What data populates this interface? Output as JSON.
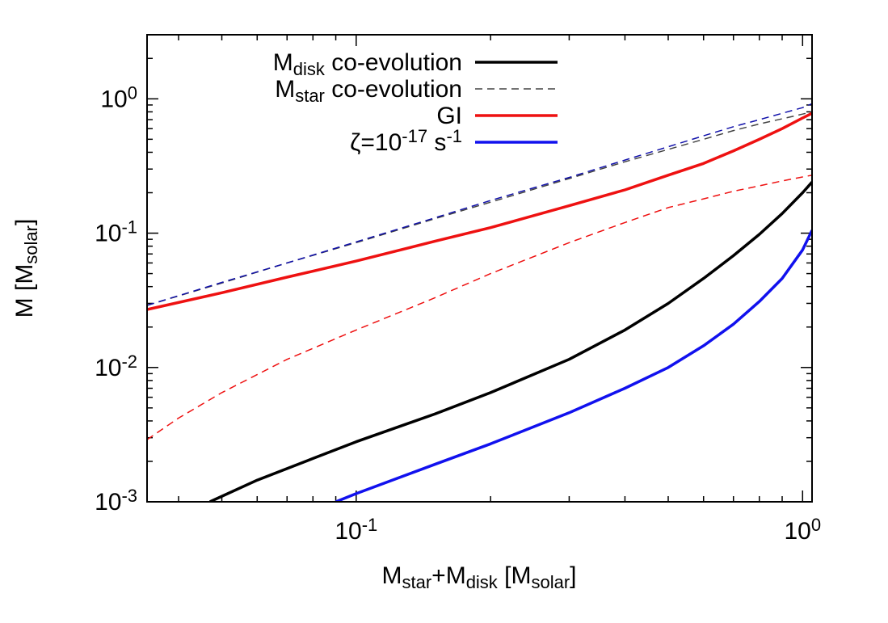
{
  "chart_data": {
    "type": "line",
    "x_scale": "log",
    "y_scale": "log",
    "xlim": [
      0.034,
      1.05
    ],
    "ylim": [
      0.001,
      3
    ],
    "xlabel": {
      "parts": [
        [
          "M",
          ""
        ],
        [
          "star",
          "sub"
        ],
        [
          "+M",
          ""
        ],
        [
          "disk",
          "sub"
        ],
        [
          " [M",
          ""
        ],
        [
          "solar",
          "sub"
        ],
        [
          "]",
          ""
        ]
      ]
    },
    "ylabel": {
      "parts": [
        [
          "M [M",
          ""
        ],
        [
          "solar",
          "sub"
        ],
        [
          "]",
          ""
        ]
      ]
    },
    "x_ticks": [
      {
        "value": 0.1,
        "base": "10",
        "exp": "-1"
      },
      {
        "value": 1,
        "base": "10",
        "exp": "0"
      }
    ],
    "y_ticks": [
      {
        "value": 0.001,
        "base": "10",
        "exp": "-3"
      },
      {
        "value": 0.01,
        "base": "10",
        "exp": "-2"
      },
      {
        "value": 0.1,
        "base": "10",
        "exp": "-1"
      },
      {
        "value": 1,
        "base": "10",
        "exp": "0"
      }
    ],
    "legend_position": "top-right",
    "series": [
      {
        "name": "Mdisk co-evolution",
        "label_parts": [
          [
            "M",
            ""
          ],
          [
            "disk",
            "sub"
          ],
          [
            " co-evolution",
            ""
          ]
        ],
        "color": "#000000",
        "style": "solid",
        "width": 3.5,
        "in_legend": true,
        "x": [
          0.047,
          0.06,
          0.08,
          0.1,
          0.15,
          0.2,
          0.3,
          0.4,
          0.5,
          0.6,
          0.7,
          0.8,
          0.9,
          1.0,
          1.05
        ],
        "y": [
          0.001,
          0.00145,
          0.0021,
          0.0028,
          0.0045,
          0.0065,
          0.0115,
          0.019,
          0.03,
          0.046,
          0.068,
          0.098,
          0.14,
          0.2,
          0.24
        ]
      },
      {
        "name": "Mstar co-evolution",
        "label_parts": [
          [
            "M",
            ""
          ],
          [
            "star",
            "sub"
          ],
          [
            " co-evolution",
            ""
          ]
        ],
        "color": "#444444",
        "style": "dashed",
        "width": 1.5,
        "in_legend": true,
        "x": [
          0.034,
          0.05,
          0.07,
          0.1,
          0.15,
          0.2,
          0.3,
          0.4,
          0.5,
          0.6,
          0.7,
          0.8,
          0.9,
          1.0,
          1.05
        ],
        "y": [
          0.029,
          0.0425,
          0.06,
          0.085,
          0.128,
          0.17,
          0.255,
          0.34,
          0.42,
          0.5,
          0.58,
          0.65,
          0.71,
          0.77,
          0.8
        ]
      },
      {
        "name": "GI",
        "label_parts": [
          [
            "GI",
            ""
          ]
        ],
        "color": "#ee1111",
        "style": "solid",
        "width": 3.5,
        "in_legend": true,
        "x": [
          0.034,
          0.05,
          0.07,
          0.1,
          0.15,
          0.2,
          0.3,
          0.4,
          0.5,
          0.6,
          0.7,
          0.8,
          0.9,
          1.0,
          1.05
        ],
        "y": [
          0.027,
          0.036,
          0.047,
          0.062,
          0.087,
          0.11,
          0.16,
          0.21,
          0.27,
          0.33,
          0.41,
          0.5,
          0.6,
          0.72,
          0.78
        ]
      },
      {
        "name": "ζ=10-17 s-1",
        "label_parts": [
          [
            "ζ=10",
            ""
          ],
          [
            "-17",
            "sup"
          ],
          [
            " s",
            ""
          ],
          [
            "-1",
            "sup"
          ]
        ],
        "color": "#1111ee",
        "style": "solid",
        "width": 3.5,
        "in_legend": true,
        "x": [
          0.09,
          0.1,
          0.15,
          0.2,
          0.3,
          0.4,
          0.5,
          0.6,
          0.7,
          0.8,
          0.9,
          1.0,
          1.05
        ],
        "y": [
          0.001,
          0.00115,
          0.0019,
          0.0027,
          0.0046,
          0.007,
          0.01,
          0.0145,
          0.021,
          0.031,
          0.046,
          0.075,
          0.105
        ]
      },
      {
        "name": "Mstar (ζ=10-17 s-1)",
        "color": "#1111aa",
        "style": "dashed",
        "width": 1.5,
        "in_legend": false,
        "x": [
          0.034,
          0.05,
          0.07,
          0.1,
          0.15,
          0.2,
          0.3,
          0.4,
          0.5,
          0.6,
          0.7,
          0.8,
          0.9,
          1.0,
          1.05
        ],
        "y": [
          0.029,
          0.043,
          0.06,
          0.086,
          0.13,
          0.175,
          0.26,
          0.35,
          0.44,
          0.53,
          0.62,
          0.7,
          0.78,
          0.86,
          0.92
        ]
      },
      {
        "name": "Mstar (GI)",
        "color": "#ee1111",
        "style": "dashed",
        "width": 1.5,
        "in_legend": false,
        "x": [
          0.034,
          0.04,
          0.05,
          0.07,
          0.1,
          0.15,
          0.2,
          0.3,
          0.4,
          0.5,
          0.6,
          0.7,
          0.8,
          0.9,
          1.0,
          1.05
        ],
        "y": [
          0.0029,
          0.0042,
          0.0065,
          0.0115,
          0.019,
          0.033,
          0.05,
          0.085,
          0.12,
          0.155,
          0.18,
          0.205,
          0.225,
          0.245,
          0.262,
          0.27
        ]
      }
    ]
  }
}
